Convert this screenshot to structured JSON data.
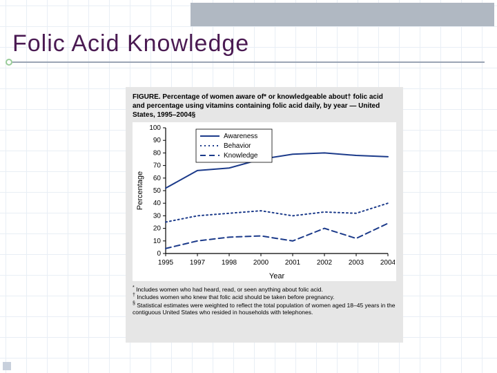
{
  "slide": {
    "title": "Folic Acid Knowledge",
    "title_color": "#4a1a52",
    "title_fontsize": 34,
    "rule_color": "#9aa4b4",
    "bg_grid_color": "#e8eef5",
    "header_strip_color": "#b0b8c2"
  },
  "figure": {
    "panel_bg": "#e6e6e6",
    "caption": "FIGURE. Percentage of women aware of* or knowledgeable about† folic acid and percentage using vitamins containing folic acid daily, by year — United States, 1995–2004§",
    "chart": {
      "type": "line",
      "background_color": "#ffffff",
      "axis_color": "#000000",
      "xlabel": "Year",
      "ylabel": "Percentage",
      "label_fontsize": 11,
      "tick_fontsize": 10,
      "ylim": [
        0,
        100
      ],
      "ytick_step": 10,
      "yticks": [
        0,
        10,
        20,
        30,
        40,
        50,
        60,
        70,
        80,
        90,
        100
      ],
      "xcategories": [
        "1995",
        "1997",
        "1998",
        "2000",
        "2001",
        "2002",
        "2003",
        "2004"
      ],
      "series": [
        {
          "name": "Awareness",
          "color": "#1b3a8a",
          "dash": "solid",
          "width": 2,
          "values": [
            52,
            66,
            68,
            75,
            79,
            80,
            78,
            77
          ]
        },
        {
          "name": "Behavior",
          "color": "#1b3a8a",
          "dash": "dot",
          "width": 2,
          "values": [
            25,
            30,
            32,
            34,
            30,
            33,
            32,
            40
          ]
        },
        {
          "name": "Knowledge",
          "color": "#1b3a8a",
          "dash": "dash",
          "width": 2,
          "values": [
            4,
            10,
            13,
            14,
            10,
            20,
            12,
            24
          ]
        }
      ],
      "legend": {
        "position": "inside-top",
        "box_border": "#000000",
        "box_bg": "#ffffff"
      }
    },
    "footnotes": [
      {
        "mark": "*",
        "text": "Includes women who had heard, read, or seen anything about folic acid."
      },
      {
        "mark": "†",
        "text": "Includes women who knew that folic acid should be taken before pregnancy."
      },
      {
        "mark": "§",
        "text": "Statistical estimates were weighted to reflect the total population of women aged 18–45 years in the contiguous United States who resided in households with telephones."
      }
    ]
  }
}
